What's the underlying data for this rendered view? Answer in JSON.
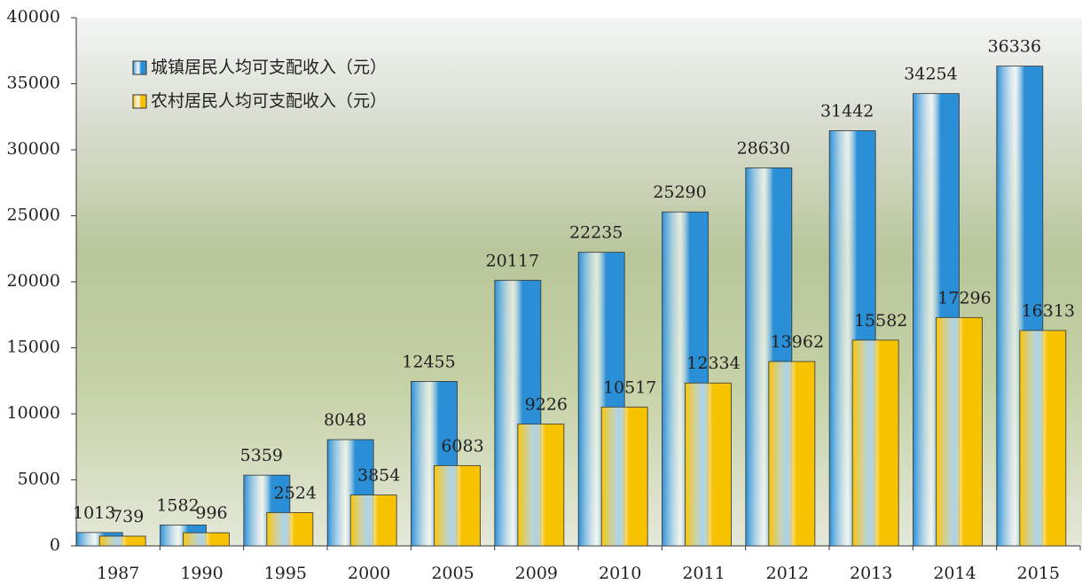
{
  "chart_data": {
    "type": "bar",
    "categories": [
      "1987",
      "1990",
      "1995",
      "2000",
      "2005",
      "2009",
      "2010",
      "2011",
      "2012",
      "2013",
      "2014",
      "2015"
    ],
    "series": [
      {
        "name": "城镇居民人均可支配收入（元）",
        "color": "#2a8fd6",
        "values": [
          1013,
          1582,
          5359,
          8048,
          12455,
          20117,
          22235,
          25290,
          28630,
          31442,
          34254,
          36336
        ]
      },
      {
        "name": "农村居民人均可支配收入（元）",
        "color": "#f7c200",
        "values": [
          739,
          996,
          2524,
          3854,
          6083,
          9226,
          10517,
          12334,
          13962,
          15582,
          17296,
          16313
        ]
      }
    ],
    "ylim": [
      0,
      40000
    ],
    "yticks": [
      0,
      5000,
      10000,
      15000,
      20000,
      25000,
      30000,
      35000,
      40000
    ],
    "legend": "top-left"
  }
}
